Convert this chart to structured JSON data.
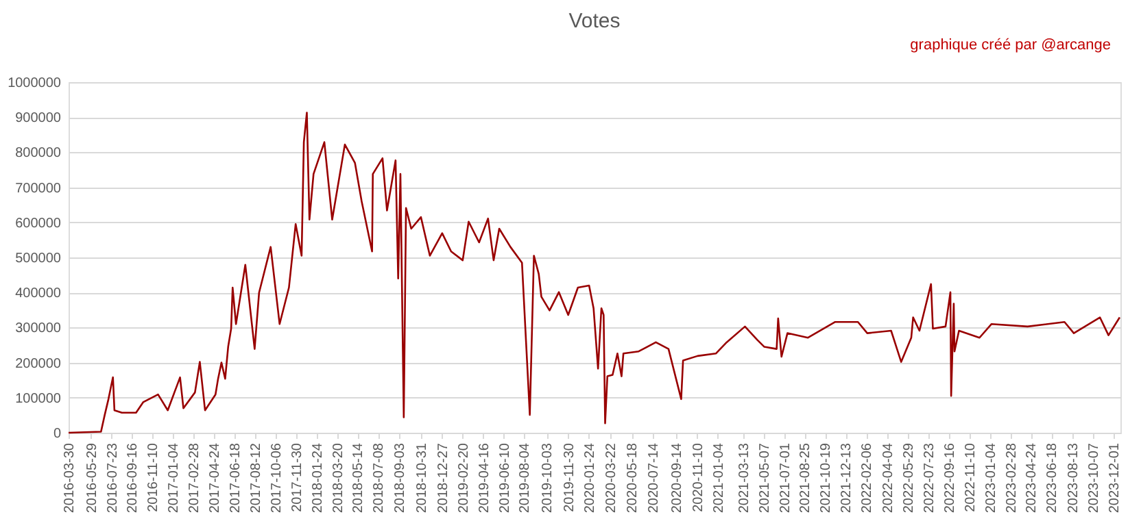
{
  "chart_data": {
    "type": "line",
    "title": "Votes",
    "annotations": [
      "graphique créé par @arcange"
    ],
    "x": [
      "2016-03-30",
      "2016-06-25",
      "2016-07-05",
      "2016-07-15",
      "2016-07-27",
      "2016-07-31",
      "2016-08-20",
      "2016-09-27",
      "2016-10-16",
      "2016-11-25",
      "2016-12-21",
      "2017-01-23",
      "2017-02-01",
      "2017-03-04",
      "2017-03-17",
      "2017-03-31",
      "2017-04-28",
      "2017-05-05",
      "2017-05-14",
      "2017-05-24",
      "2017-06-01",
      "2017-06-09",
      "2017-06-13",
      "2017-06-22",
      "2017-07-17",
      "2017-08-11",
      "2017-08-23",
      "2017-09-23",
      "2017-10-17",
      "2017-11-11",
      "2017-11-29",
      "2017-12-15",
      "2017-12-21",
      "2017-12-29",
      "2018-01-05",
      "2018-01-16",
      "2018-02-14",
      "2018-03-07",
      "2018-04-10",
      "2018-05-07",
      "2018-05-25",
      "2018-06-22",
      "2018-06-24",
      "2018-07-20",
      "2018-08-01",
      "2018-08-24",
      "2018-08-31",
      "2018-09-06",
      "2018-09-15",
      "2018-09-21",
      "2018-10-05",
      "2018-10-31",
      "2018-11-24",
      "2018-12-27",
      "2019-01-20",
      "2019-02-20",
      "2019-03-08",
      "2019-04-05",
      "2019-04-29",
      "2019-05-14",
      "2019-05-29",
      "2019-06-28",
      "2019-07-29",
      "2019-08-19",
      "2019-08-30",
      "2019-09-12",
      "2019-09-19",
      "2019-10-11",
      "2019-11-05",
      "2019-11-30",
      "2019-12-26",
      "2020-01-25",
      "2020-02-06",
      "2020-02-18",
      "2020-02-27",
      "2020-03-04",
      "2020-03-08",
      "2020-03-14",
      "2020-03-28",
      "2020-04-10",
      "2020-04-21",
      "2020-04-26",
      "2020-06-06",
      "2020-07-22",
      "2020-08-25",
      "2020-09-28",
      "2020-10-03",
      "2020-11-11",
      "2020-12-30",
      "2021-01-28",
      "2021-03-18",
      "2021-04-20",
      "2021-05-09",
      "2021-06-11",
      "2021-06-15",
      "2021-06-24",
      "2021-07-10",
      "2021-09-03",
      "2021-11-15",
      "2022-01-15",
      "2022-02-09",
      "2022-04-14",
      "2022-05-11",
      "2022-06-07",
      "2022-06-12",
      "2022-06-29",
      "2022-07-30",
      "2022-08-04",
      "2022-09-07",
      "2022-09-20",
      "2022-09-22",
      "2022-09-29",
      "2022-10-01",
      "2022-10-13",
      "2022-12-07",
      "2023-01-08",
      "2023-04-15",
      "2023-07-23",
      "2023-08-17",
      "2023-10-26",
      "2023-11-18",
      "2023-12-18"
    ],
    "series": [
      {
        "color": "#990000",
        "values": [
          0,
          3000,
          51000,
          96000,
          158000,
          64000,
          57000,
          57000,
          87000,
          109000,
          64000,
          158000,
          70000,
          115000,
          202000,
          64000,
          109000,
          154000,
          200000,
          154000,
          245000,
          297000,
          414000,
          310000,
          479000,
          239000,
          400000,
          530000,
          310000,
          414000,
          595000,
          505000,
          829000,
          913000,
          608000,
          738000,
          829000,
          608000,
          822000,
          770000,
          660000,
          517000,
          738000,
          783000,
          634000,
          777000,
          440000,
          738000,
          44000,
          641000,
          582000,
          615000,
          505000,
          569000,
          517000,
          492000,
          602000,
          543000,
          611000,
          492000,
          582000,
          530000,
          485000,
          51000,
          505000,
          453000,
          388000,
          349000,
          401000,
          336000,
          414000,
          420000,
          355000,
          183000,
          355000,
          336000,
          27000,
          161000,
          165000,
          226000,
          161000,
          226000,
          232000,
          258000,
          239000,
          96000,
          206000,
          219000,
          226000,
          258000,
          303000,
          265000,
          245000,
          239000,
          326000,
          217000,
          284000,
          271000,
          316000,
          316000,
          284000,
          291000,
          202000,
          271000,
          329000,
          291000,
          424000,
          297000,
          303000,
          401000,
          105000,
          368000,
          232000,
          291000,
          271000,
          310000,
          303000,
          316000,
          284000,
          329000,
          278000,
          329000
        ]
      }
    ],
    "xlim": [
      "2016-03-30",
      "2023-12-20"
    ],
    "xticks": [
      "2016-03-30",
      "2016-05-29",
      "2016-07-23",
      "2016-09-16",
      "2016-11-10",
      "2017-01-04",
      "2017-02-28",
      "2017-04-24",
      "2017-06-18",
      "2017-08-12",
      "2017-10-06",
      "2017-11-30",
      "2018-01-24",
      "2018-03-20",
      "2018-05-14",
      "2018-07-08",
      "2018-09-03",
      "2018-10-31",
      "2018-12-27",
      "2019-02-20",
      "2019-04-16",
      "2019-06-10",
      "2019-08-04",
      "2019-10-03",
      "2019-11-30",
      "2020-01-24",
      "2020-03-22",
      "2020-05-18",
      "2020-07-14",
      "2020-09-14",
      "2020-11-10",
      "2021-01-04",
      "2021-03-13",
      "2021-05-07",
      "2021-07-01",
      "2021-08-25",
      "2021-10-19",
      "2021-12-13",
      "2022-02-06",
      "2022-04-04",
      "2022-05-29",
      "2022-07-23",
      "2022-09-16",
      "2022-11-10",
      "2023-01-04",
      "2023-02-28",
      "2023-04-24",
      "2023-06-18",
      "2023-08-13",
      "2023-10-07",
      "2023-12-01"
    ],
    "ylim": [
      0,
      1000000
    ],
    "yticks": [
      0,
      100000,
      200000,
      300000,
      400000,
      500000,
      600000,
      700000,
      800000,
      900000,
      1000000
    ],
    "grid": "y",
    "legend": false,
    "marker": "none",
    "line_style": "solid"
  }
}
